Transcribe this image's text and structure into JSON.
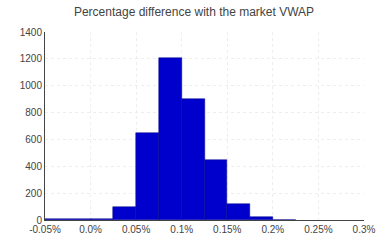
{
  "chart_data": {
    "type": "histogram",
    "title": "Percentage difference with the market VWAP",
    "bins": [
      -0.05,
      0.0,
      0.025,
      0.05,
      0.075,
      0.1,
      0.125,
      0.15,
      0.175,
      0.2,
      0.225
    ],
    "values": [
      5,
      10,
      100,
      650,
      1210,
      900,
      450,
      120,
      25,
      2
    ],
    "color": "#0000CC",
    "xlim": [
      -0.05,
      0.3
    ],
    "xticks": [
      {
        "value": -0.05,
        "label": "-0.05%"
      },
      {
        "value": 0.0,
        "label": "0.0%"
      },
      {
        "value": 0.05,
        "label": "0.05%"
      },
      {
        "value": 0.1,
        "label": "0.1%"
      },
      {
        "value": 0.15,
        "label": "0.15%"
      },
      {
        "value": 0.2,
        "label": "0.2%"
      },
      {
        "value": 0.25,
        "label": "0.25%"
      },
      {
        "value": 0.3,
        "label": "0.3%"
      }
    ],
    "ylim": [
      0,
      1400
    ],
    "yticks": [
      0,
      200,
      400,
      600,
      800,
      1000,
      1200,
      1400
    ],
    "grid": true
  }
}
